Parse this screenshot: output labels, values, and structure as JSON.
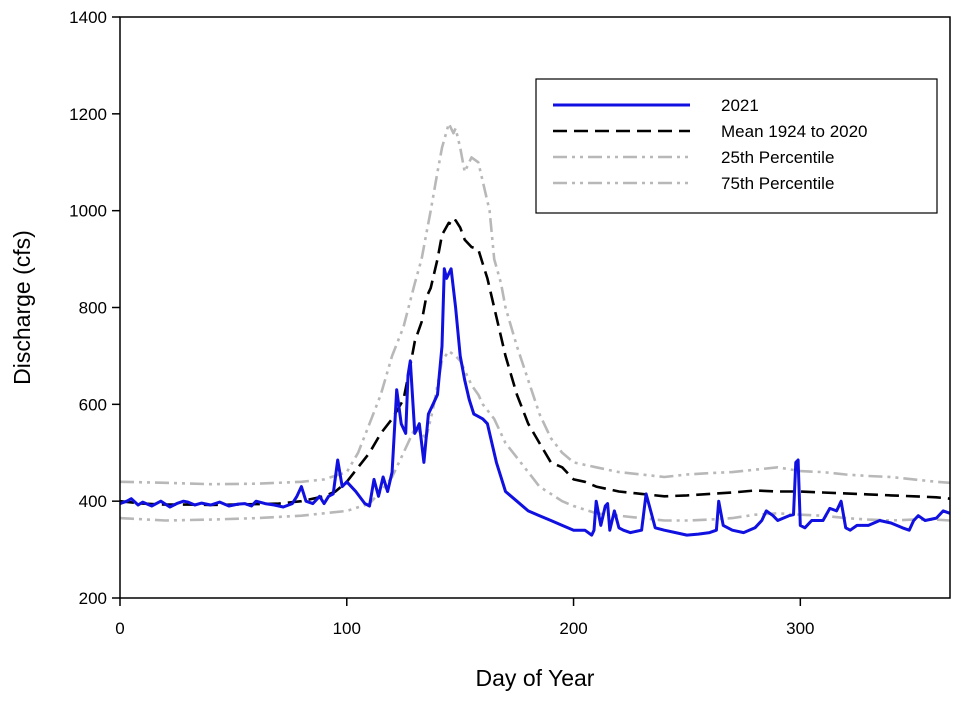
{
  "chart_data": {
    "type": "line",
    "title": "",
    "xlabel": "Day of Year",
    "ylabel": "Discharge (cfs)",
    "xlim": [
      0,
      366
    ],
    "ylim": [
      200,
      1400
    ],
    "xticks": [
      0,
      100,
      200,
      300
    ],
    "yticks": [
      200,
      400,
      600,
      800,
      1000,
      1200,
      1400
    ],
    "grid": false,
    "legend_position": "top-right",
    "series": [
      {
        "name": "2021",
        "color": "#1010e0",
        "style": "solid",
        "x": [
          0,
          3,
          5,
          8,
          10,
          14,
          18,
          22,
          25,
          28,
          30,
          33,
          36,
          40,
          44,
          48,
          52,
          55,
          58,
          60,
          64,
          68,
          72,
          76,
          78,
          80,
          82,
          85,
          88,
          90,
          92,
          94,
          96,
          98,
          100,
          104,
          108,
          110,
          112,
          114,
          116,
          118,
          120,
          122,
          124,
          126,
          127,
          128,
          130,
          132,
          134,
          136,
          138,
          140,
          142,
          143,
          144,
          145,
          146,
          148,
          150,
          152,
          154,
          156,
          158,
          160,
          162,
          164,
          166,
          170,
          175,
          180,
          185,
          190,
          195,
          200,
          205,
          208,
          209,
          210,
          212,
          214,
          215,
          216,
          218,
          220,
          222,
          225,
          230,
          232,
          234,
          236,
          240,
          245,
          250,
          255,
          260,
          263,
          264,
          266,
          268,
          270,
          275,
          280,
          283,
          285,
          288,
          290,
          295,
          297,
          298,
          299,
          300,
          302,
          305,
          310,
          313,
          316,
          318,
          320,
          322,
          325,
          330,
          335,
          340,
          345,
          348,
          350,
          352,
          355,
          360,
          363,
          366
        ],
        "y": [
          395,
          400,
          405,
          392,
          398,
          390,
          400,
          388,
          395,
          400,
          398,
          392,
          396,
          392,
          398,
          390,
          394,
          395,
          390,
          400,
          395,
          392,
          388,
          395,
          410,
          430,
          400,
          395,
          410,
          395,
          410,
          415,
          485,
          430,
          440,
          420,
          395,
          390,
          445,
          410,
          450,
          420,
          460,
          630,
          560,
          540,
          660,
          690,
          540,
          560,
          480,
          580,
          600,
          620,
          720,
          880,
          860,
          870,
          880,
          800,
          700,
          650,
          610,
          580,
          575,
          570,
          560,
          520,
          480,
          420,
          400,
          380,
          370,
          360,
          350,
          340,
          340,
          330,
          340,
          400,
          350,
          390,
          395,
          340,
          380,
          345,
          340,
          335,
          340,
          415,
          380,
          345,
          340,
          335,
          330,
          332,
          335,
          340,
          400,
          350,
          345,
          340,
          335,
          345,
          360,
          380,
          370,
          360,
          370,
          372,
          480,
          485,
          350,
          345,
          360,
          360,
          385,
          380,
          400,
          345,
          340,
          350,
          350,
          360,
          355,
          345,
          340,
          360,
          370,
          360,
          365,
          380,
          375
        ]
      },
      {
        "name": "Mean 1924 to 2020",
        "color": "#000000",
        "style": "dashed",
        "x": [
          0,
          10,
          20,
          30,
          40,
          50,
          60,
          70,
          80,
          90,
          95,
          100,
          105,
          110,
          115,
          120,
          125,
          128,
          130,
          133,
          135,
          137,
          140,
          142,
          145,
          147,
          148,
          150,
          152,
          155,
          158,
          160,
          162,
          165,
          170,
          175,
          180,
          185,
          190,
          195,
          200,
          205,
          210,
          220,
          230,
          240,
          250,
          260,
          270,
          280,
          290,
          300,
          310,
          320,
          330,
          340,
          350,
          360,
          366
        ],
        "y": [
          400,
          395,
          393,
          393,
          392,
          393,
          394,
          395,
          400,
          410,
          420,
          440,
          470,
          500,
          540,
          570,
          610,
          680,
          730,
          770,
          820,
          840,
          900,
          950,
          975,
          970,
          980,
          965,
          940,
          925,
          920,
          890,
          860,
          800,
          700,
          620,
          560,
          520,
          480,
          470,
          445,
          440,
          430,
          420,
          415,
          410,
          412,
          415,
          418,
          422,
          420,
          420,
          418,
          416,
          414,
          412,
          410,
          408,
          405
        ]
      },
      {
        "name": "25th Percentile",
        "color": "#b8b8b8",
        "style": "dash-dot-dot",
        "x": [
          0,
          20,
          40,
          60,
          80,
          90,
          100,
          110,
          115,
          120,
          125,
          130,
          133,
          135,
          138,
          140,
          142,
          145,
          148,
          150,
          153,
          155,
          158,
          160,
          165,
          170,
          175,
          180,
          185,
          190,
          195,
          200,
          210,
          220,
          230,
          240,
          250,
          260,
          270,
          280,
          290,
          300,
          310,
          320,
          330,
          340,
          350,
          360,
          366
        ],
        "y": [
          365,
          360,
          362,
          365,
          370,
          375,
          380,
          395,
          420,
          450,
          500,
          550,
          540,
          530,
          590,
          640,
          690,
          710,
          700,
          690,
          660,
          640,
          620,
          600,
          570,
          520,
          490,
          460,
          430,
          415,
          400,
          390,
          375,
          370,
          365,
          360,
          360,
          362,
          365,
          372,
          375,
          372,
          370,
          365,
          362,
          360,
          362,
          362,
          360
        ]
      },
      {
        "name": "75th Percentile",
        "color": "#b8b8b8",
        "style": "dash-dot-dot",
        "x": [
          0,
          20,
          40,
          60,
          80,
          90,
          100,
          105,
          110,
          115,
          120,
          125,
          130,
          133,
          135,
          137,
          140,
          142,
          145,
          147,
          148,
          150,
          152,
          155,
          158,
          160,
          163,
          165,
          168,
          170,
          175,
          180,
          185,
          190,
          195,
          200,
          210,
          220,
          230,
          240,
          250,
          260,
          270,
          280,
          290,
          300,
          310,
          320,
          330,
          340,
          350,
          360,
          366
        ],
        "y": [
          440,
          438,
          435,
          436,
          440,
          445,
          460,
          500,
          560,
          620,
          700,
          760,
          850,
          900,
          950,
          1000,
          1080,
          1130,
          1180,
          1160,
          1170,
          1130,
          1080,
          1110,
          1100,
          1060,
          1000,
          900,
          850,
          800,
          720,
          650,
          580,
          530,
          500,
          480,
          470,
          460,
          455,
          450,
          455,
          458,
          460,
          465,
          470,
          462,
          460,
          455,
          452,
          450,
          445,
          440,
          438
        ]
      }
    ]
  }
}
